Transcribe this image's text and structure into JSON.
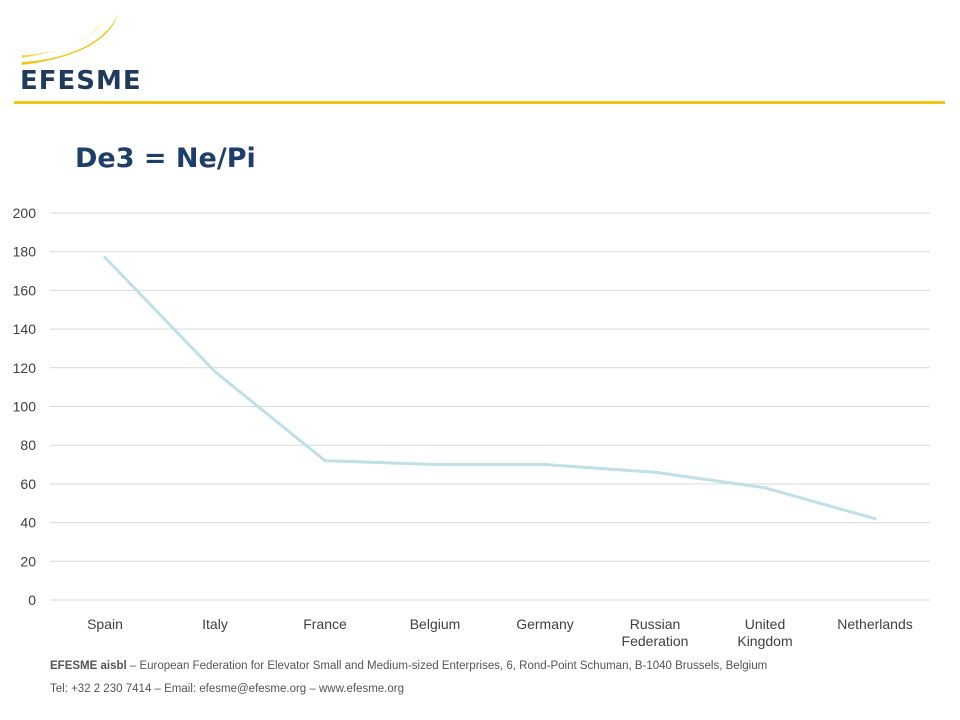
{
  "brand": {
    "logo_text": "EFESME",
    "colors": {
      "accent": "#f3c614",
      "navy": "#1f3b5c",
      "title": "#1d3d6b",
      "series": "#bfe0e8"
    }
  },
  "slide": {
    "title": "De3 = Ne/Pi"
  },
  "chart_data": {
    "type": "line",
    "categories": [
      "Spain",
      "Italy",
      "France",
      "Belgium",
      "Germany",
      "Russian Federation",
      "United Kingdom",
      "Netherlands"
    ],
    "category_lines": [
      [
        "Spain"
      ],
      [
        "Italy"
      ],
      [
        "France"
      ],
      [
        "Belgium"
      ],
      [
        "Germany"
      ],
      [
        "Russian",
        "Federation"
      ],
      [
        "United",
        "Kingdom"
      ],
      [
        "Netherlands"
      ]
    ],
    "series": [
      {
        "values": [
          177,
          118,
          72,
          70,
          70,
          66,
          58,
          42
        ]
      }
    ],
    "ylim": [
      0,
      200
    ],
    "yticks": [
      0,
      20,
      40,
      60,
      80,
      100,
      120,
      140,
      160,
      180,
      200
    ],
    "grid": true,
    "legend": "none"
  },
  "footer": {
    "org_name": "EFESME aisbl",
    "org_description": " – European Federation for Elevator Small and Medium-sized Enterprises, 6, Rond-Point Schuman, B-1040 Brussels, Belgium",
    "contact": "Tel: +32 2 230 7414 – Email: efesme@efesme.org – www.efesme.org"
  }
}
